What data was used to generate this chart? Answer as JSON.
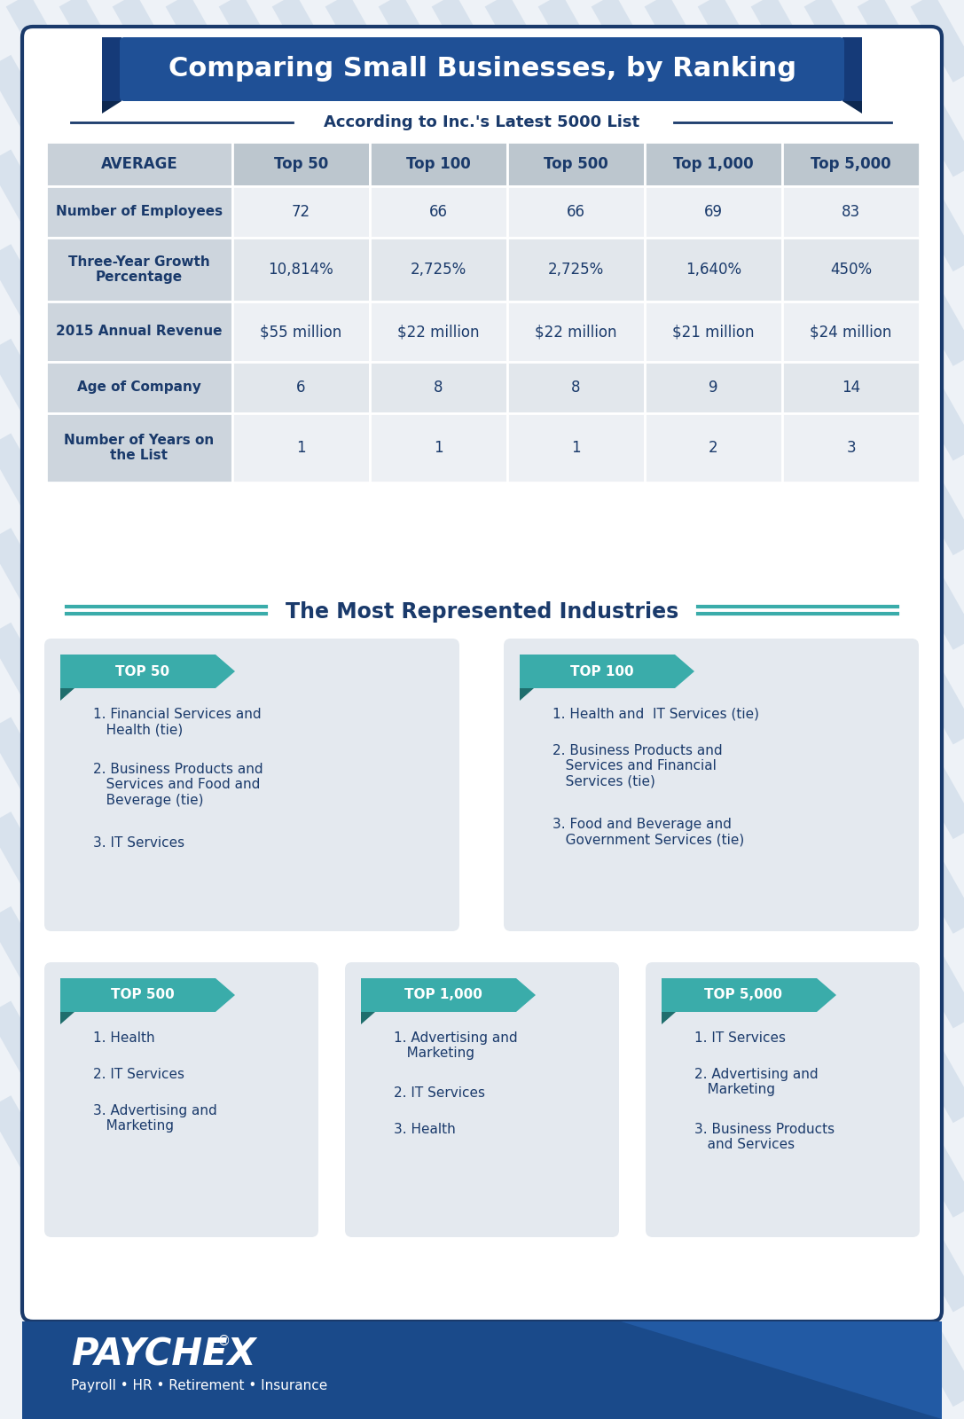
{
  "title": "Comparing Small Businesses, by Ranking",
  "subtitle": "According to Inc.'s Latest 5000 List",
  "bg_color": "#eef2f7",
  "stripe_color": "#d8e2ed",
  "border_color": "#1a3a6b",
  "title_banner_color": "#1f5096",
  "title_banner_dark": "#153a78",
  "title_banner_darker": "#0d2850",
  "table_text_color": "#1a3a6b",
  "columns": [
    "AVERAGE",
    "Top 50",
    "Top 100",
    "Top 500",
    "Top 1,000",
    "Top 5,000"
  ],
  "rows": [
    {
      "label": "Number of Employees",
      "values": [
        "72",
        "66",
        "66",
        "69",
        "83"
      ]
    },
    {
      "label": "Three-Year Growth\nPercentage",
      "values": [
        "10,814%",
        "2,725%",
        "2,725%",
        "1,640%",
        "450%"
      ]
    },
    {
      "label": "2015 Annual Revenue",
      "values": [
        "$55 million",
        "$22 million",
        "$22 million",
        "$21 million",
        "$24 million"
      ]
    },
    {
      "label": "Age of Company",
      "values": [
        "6",
        "8",
        "8",
        "9",
        "14"
      ]
    },
    {
      "label": "Number of Years on\nthe List",
      "values": [
        "1",
        "1",
        "1",
        "2",
        "3"
      ]
    }
  ],
  "section2_title": "The Most Represented Industries",
  "teal_color": "#3aacaa",
  "teal_dark": "#2a8a88",
  "teal_fold": "#1f6e6d",
  "card_bg": "#e4e9ef",
  "card_text_color": "#1a3a6b",
  "panels": [
    {
      "label": "TOP 50",
      "items": [
        "1. Financial Services and\n   Health (tie)",
        "2. Business Products and\n   Services and Food and\n   Beverage (tie)",
        "3. IT Services"
      ]
    },
    {
      "label": "TOP 100",
      "items": [
        "1. Health and  IT Services (tie)",
        "2. Business Products and\n   Services and Financial\n   Services (tie)",
        "3. Food and Beverage and\n   Government Services (tie)"
      ]
    },
    {
      "label": "TOP 500",
      "items": [
        "1. Health",
        "2. IT Services",
        "3. Advertising and\n   Marketing"
      ]
    },
    {
      "label": "TOP 1,000",
      "items": [
        "1. Advertising and\n   Marketing",
        "2. IT Services",
        "3. Health"
      ]
    },
    {
      "label": "TOP 5,000",
      "items": [
        "1. IT Services",
        "2. Advertising and\n   Marketing",
        "3. Business Products\n   and Services"
      ]
    }
  ],
  "footer_bg": "#1a4a8a",
  "footer_text": "PAYCHEX",
  "footer_sub": "Payroll • HR • Retirement • Insurance"
}
